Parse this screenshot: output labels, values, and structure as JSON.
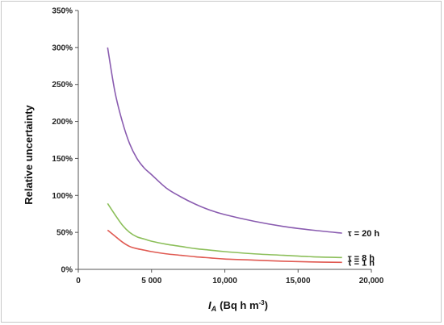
{
  "chart_data": {
    "type": "line",
    "title": "",
    "ylabel": "Relative uncertainty",
    "xlabel": {
      "symbol": "I",
      "subscript": "A",
      "units": "(Bq h m",
      "exponent": "-3",
      "close": ")"
    },
    "xlim": [
      0,
      20000
    ],
    "ylim": [
      0,
      350
    ],
    "x_ticks": [
      {
        "value": 0,
        "label": "0"
      },
      {
        "value": 5000,
        "label": "5 000"
      },
      {
        "value": 10000,
        "label": "10,000"
      },
      {
        "value": 15000,
        "label": "15,000"
      },
      {
        "value": 20000,
        "label": "20,000"
      }
    ],
    "y_ticks": [
      {
        "value": 0,
        "label": "0%"
      },
      {
        "value": 50,
        "label": "50%"
      },
      {
        "value": 100,
        "label": "100%"
      },
      {
        "value": 150,
        "label": "150%"
      },
      {
        "value": 200,
        "label": "200%"
      },
      {
        "value": 250,
        "label": "250%"
      },
      {
        "value": 300,
        "label": "300%"
      },
      {
        "value": 350,
        "label": "350%"
      }
    ],
    "grid": false,
    "legend": "none",
    "series": [
      {
        "label": "τ = 20 h",
        "color": "#8a5cb0",
        "x": [
          2000,
          2500,
          3000,
          3500,
          4000,
          4500,
          5000,
          6000,
          7000,
          8000,
          9000,
          10000,
          12000,
          14000,
          16000,
          18000
        ],
        "y": [
          300,
          240,
          200,
          170,
          150,
          137,
          128,
          110,
          98,
          88,
          80,
          74,
          65,
          58,
          53,
          49
        ]
      },
      {
        "label": "τ = 8 h",
        "color": "#8cbf5a",
        "x": [
          2000,
          2500,
          3000,
          3500,
          4000,
          4500,
          5000,
          6000,
          7000,
          8000,
          9000,
          10000,
          12000,
          14000,
          16000,
          18000
        ],
        "y": [
          89,
          74,
          60,
          50,
          44,
          41,
          38,
          34,
          31,
          28,
          26,
          24,
          21,
          19,
          17,
          16
        ]
      },
      {
        "label": "τ = 1 h",
        "color": "#e05a52",
        "x": [
          2000,
          2500,
          3000,
          3500,
          4000,
          4500,
          5000,
          6000,
          7000,
          8000,
          9000,
          10000,
          12000,
          14000,
          16000,
          18000
        ],
        "y": [
          53,
          45,
          37,
          31,
          28,
          26,
          24,
          21,
          19,
          17,
          15.5,
          14,
          12.5,
          11,
          10,
          9.5
        ]
      }
    ]
  }
}
